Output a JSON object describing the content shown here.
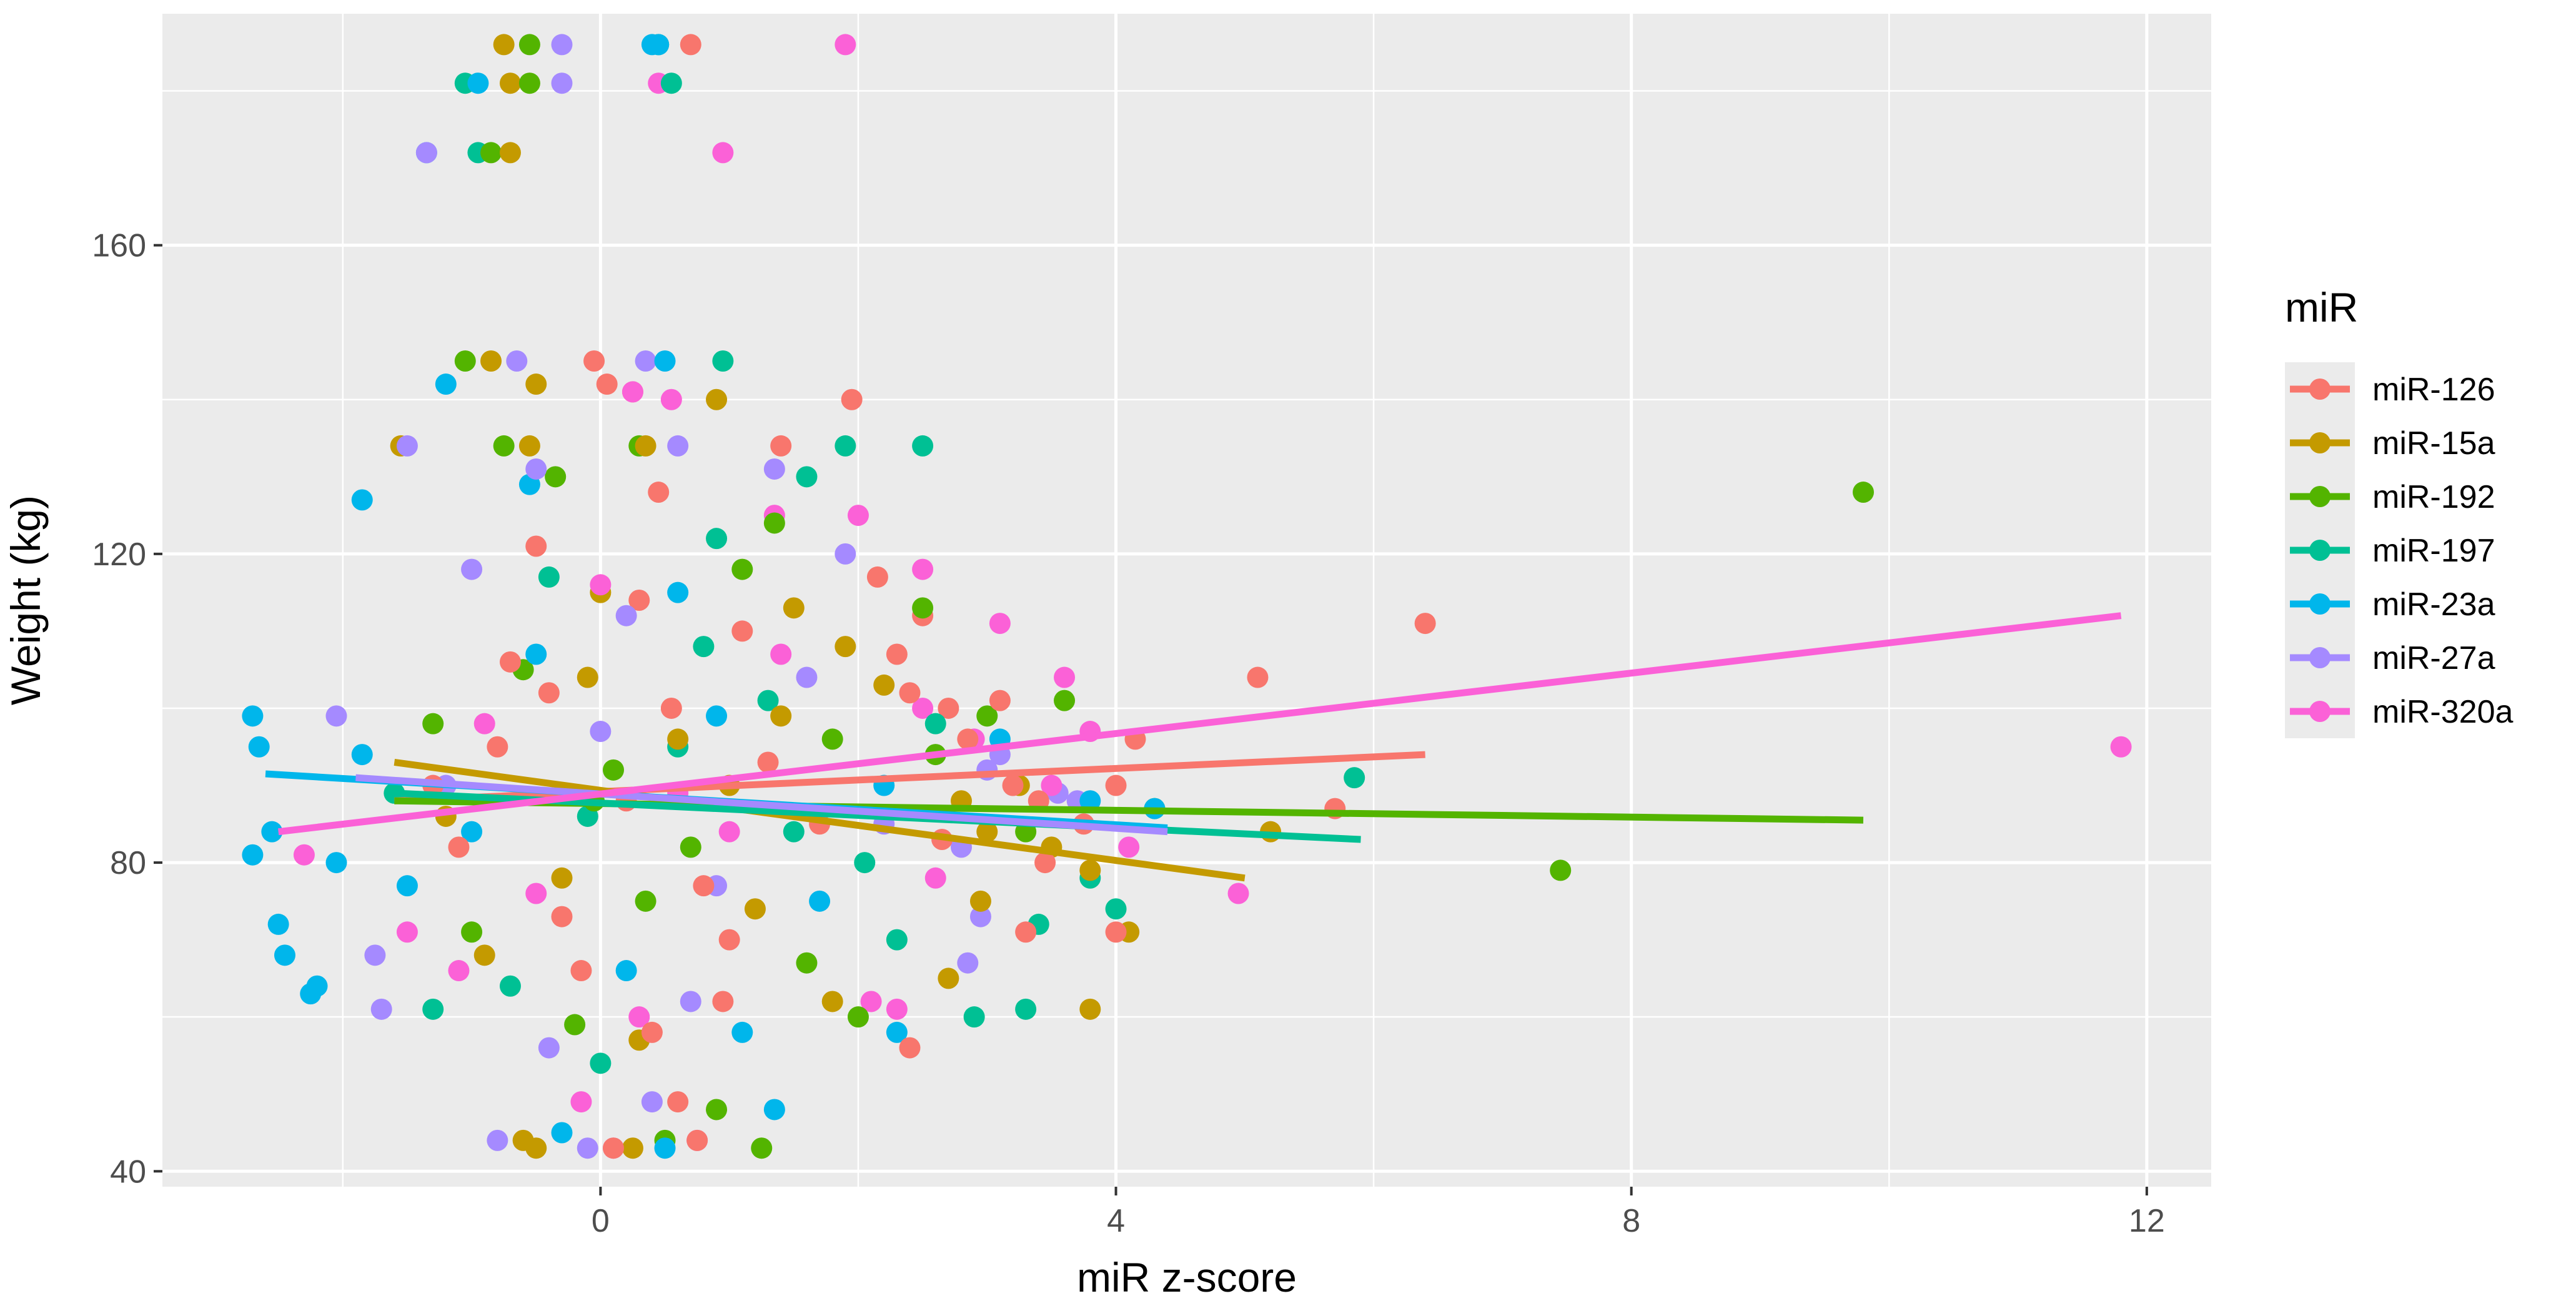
{
  "chart_data": {
    "type": "scatter",
    "xlabel": "miR z-score",
    "ylabel": "Weight (kg)",
    "xlim": [
      -3.4,
      12.5
    ],
    "ylim": [
      38,
      190
    ],
    "x_ticks": [
      0,
      4,
      8,
      12
    ],
    "x_tick_labels": [
      "0",
      "4",
      "8",
      "12"
    ],
    "y_ticks": [
      40,
      80,
      120,
      160
    ],
    "y_tick_labels": [
      "40",
      "80",
      "120",
      "160"
    ],
    "grid": true,
    "background": "#ebebeb",
    "legend": {
      "title": "miR",
      "position": "right",
      "entries": [
        "miR-126",
        "miR-15a",
        "miR-192",
        "miR-197",
        "miR-23a",
        "miR-27a",
        "miR-320a"
      ]
    },
    "series": [
      {
        "name": "miR-126",
        "color": "#F8766D",
        "fit": {
          "x": [
            -1.6,
            6.4
          ],
          "y": [
            88,
            94
          ]
        },
        "points": [
          [
            -0.05,
            145
          ],
          [
            0.05,
            142
          ],
          [
            0.25,
            141
          ],
          [
            1.95,
            140
          ],
          [
            0.7,
            186
          ],
          [
            1.4,
            134
          ],
          [
            0.45,
            128
          ],
          [
            -0.5,
            121
          ],
          [
            0.3,
            114
          ],
          [
            2.5,
            112
          ],
          [
            6.4,
            111
          ],
          [
            2.15,
            117
          ],
          [
            2.4,
            102
          ],
          [
            2.3,
            107
          ],
          [
            5.1,
            104
          ],
          [
            3.1,
            101
          ],
          [
            4.15,
            96
          ],
          [
            2.7,
            100
          ],
          [
            2.85,
            96
          ],
          [
            5.7,
            87
          ],
          [
            4.0,
            90
          ],
          [
            3.2,
            90
          ],
          [
            3.4,
            88
          ],
          [
            3.75,
            85
          ],
          [
            2.4,
            56
          ],
          [
            0.95,
            62
          ],
          [
            0.6,
            49
          ],
          [
            0.1,
            43
          ],
          [
            0.75,
            44
          ],
          [
            3.3,
            71
          ],
          [
            4.0,
            71
          ],
          [
            3.45,
            80
          ],
          [
            2.65,
            83
          ],
          [
            -0.8,
            95
          ],
          [
            -0.3,
            73
          ],
          [
            0.55,
            100
          ],
          [
            -1.1,
            82
          ],
          [
            1.0,
            70
          ],
          [
            -0.15,
            66
          ],
          [
            0.2,
            88
          ],
          [
            1.3,
            93
          ],
          [
            -0.7,
            106
          ],
          [
            0.8,
            77
          ],
          [
            1.7,
            85
          ],
          [
            -1.3,
            90
          ],
          [
            0.4,
            58
          ],
          [
            1.1,
            110
          ],
          [
            -0.4,
            102
          ]
        ]
      },
      {
        "name": "miR-15a",
        "color": "#C49A00",
        "fit": {
          "x": [
            -1.6,
            5.0
          ],
          "y": [
            93,
            78
          ]
        },
        "points": [
          [
            -0.75,
            186
          ],
          [
            -0.7,
            181
          ],
          [
            -0.85,
            145
          ],
          [
            -0.7,
            172
          ],
          [
            -1.55,
            134
          ],
          [
            -0.55,
            134
          ],
          [
            0.9,
            140
          ],
          [
            -0.5,
            142
          ],
          [
            0.35,
            134
          ],
          [
            1.5,
            113
          ],
          [
            1.9,
            108
          ],
          [
            2.2,
            103
          ],
          [
            3.25,
            90
          ],
          [
            3.5,
            82
          ],
          [
            3.0,
            84
          ],
          [
            2.8,
            88
          ],
          [
            3.8,
            79
          ],
          [
            4.1,
            71
          ],
          [
            3.8,
            61
          ],
          [
            5.2,
            84
          ],
          [
            2.95,
            75
          ],
          [
            2.7,
            65
          ],
          [
            -0.6,
            44
          ],
          [
            -0.5,
            43
          ],
          [
            0.25,
            43
          ],
          [
            1.8,
            62
          ],
          [
            1.2,
            74
          ],
          [
            -1.2,
            86
          ],
          [
            0.0,
            115
          ],
          [
            0.6,
            96
          ],
          [
            -0.3,
            78
          ],
          [
            1.0,
            90
          ],
          [
            -0.9,
            68
          ],
          [
            0.3,
            57
          ],
          [
            1.4,
            99
          ],
          [
            -0.1,
            104
          ]
        ]
      },
      {
        "name": "miR-192",
        "color": "#53B400",
        "fit": {
          "x": [
            -1.6,
            9.8
          ],
          "y": [
            88,
            85.5
          ]
        },
        "points": [
          [
            -0.55,
            186
          ],
          [
            -0.85,
            172
          ],
          [
            -0.55,
            181
          ],
          [
            -1.05,
            145
          ],
          [
            -0.75,
            134
          ],
          [
            0.3,
            134
          ],
          [
            -0.35,
            130
          ],
          [
            1.35,
            124
          ],
          [
            9.8,
            128
          ],
          [
            7.45,
            79
          ],
          [
            2.5,
            113
          ],
          [
            3.0,
            99
          ],
          [
            3.6,
            101
          ],
          [
            4.3,
            87
          ],
          [
            3.3,
            84
          ],
          [
            2.6,
            94
          ],
          [
            0.9,
            48
          ],
          [
            1.25,
            43
          ],
          [
            0.5,
            44
          ],
          [
            -0.2,
            59
          ],
          [
            -1.0,
            71
          ],
          [
            1.6,
            67
          ],
          [
            0.1,
            92
          ],
          [
            -0.6,
            105
          ],
          [
            0.7,
            82
          ],
          [
            -1.3,
            98
          ],
          [
            1.1,
            118
          ],
          [
            0.35,
            75
          ],
          [
            -0.05,
            88
          ],
          [
            2.0,
            60
          ],
          [
            1.8,
            96
          ]
        ]
      },
      {
        "name": "miR-197",
        "color": "#00C094",
        "fit": {
          "x": [
            -1.6,
            5.9
          ],
          "y": [
            89,
            83
          ]
        },
        "points": [
          [
            -0.95,
            172
          ],
          [
            -1.05,
            181
          ],
          [
            0.45,
            186
          ],
          [
            0.55,
            181
          ],
          [
            0.95,
            145
          ],
          [
            1.9,
            134
          ],
          [
            2.5,
            134
          ],
          [
            1.6,
            130
          ],
          [
            0.9,
            122
          ],
          [
            5.85,
            91
          ],
          [
            4.0,
            74
          ],
          [
            3.8,
            78
          ],
          [
            3.4,
            72
          ],
          [
            2.9,
            60
          ],
          [
            3.3,
            61
          ],
          [
            2.3,
            70
          ],
          [
            2.05,
            80
          ],
          [
            -0.1,
            86
          ],
          [
            0.8,
            108
          ],
          [
            -0.7,
            64
          ],
          [
            1.3,
            101
          ],
          [
            0.0,
            54
          ],
          [
            -1.3,
            61
          ],
          [
            0.6,
            95
          ],
          [
            -0.4,
            117
          ],
          [
            1.5,
            84
          ],
          [
            2.6,
            98
          ],
          [
            -1.6,
            89
          ]
        ]
      },
      {
        "name": "miR-23a",
        "color": "#00B6EB",
        "fit": {
          "x": [
            -2.6,
            4.4
          ],
          "y": [
            91.5,
            84.5
          ]
        },
        "points": [
          [
            -1.35,
            172
          ],
          [
            -0.95,
            181
          ],
          [
            0.4,
            186
          ],
          [
            0.45,
            186
          ],
          [
            -1.2,
            142
          ],
          [
            -0.55,
            129
          ],
          [
            0.5,
            145
          ],
          [
            -1.85,
            127
          ],
          [
            -2.7,
            99
          ],
          [
            -2.65,
            95
          ],
          [
            -2.55,
            84
          ],
          [
            -2.7,
            81
          ],
          [
            -2.5,
            72
          ],
          [
            -2.45,
            68
          ],
          [
            -2.2,
            64
          ],
          [
            -2.25,
            63
          ],
          [
            -2.05,
            80
          ],
          [
            -1.85,
            94
          ],
          [
            1.35,
            48
          ],
          [
            0.5,
            43
          ],
          [
            -0.3,
            45
          ],
          [
            2.3,
            58
          ],
          [
            3.1,
            96
          ],
          [
            3.8,
            88
          ],
          [
            4.3,
            87
          ],
          [
            1.7,
            75
          ],
          [
            0.2,
            66
          ],
          [
            -1.0,
            84
          ],
          [
            0.9,
            99
          ],
          [
            -0.5,
            107
          ],
          [
            1.1,
            58
          ],
          [
            -1.5,
            77
          ],
          [
            0.6,
            115
          ],
          [
            2.2,
            90
          ]
        ]
      },
      {
        "name": "miR-27a",
        "color": "#A58AFF",
        "fit": {
          "x": [
            -1.9,
            4.4
          ],
          "y": [
            91,
            84
          ]
        },
        "points": [
          [
            -0.3,
            186
          ],
          [
            -0.3,
            181
          ],
          [
            -1.35,
            172
          ],
          [
            -0.65,
            145
          ],
          [
            -1.5,
            134
          ],
          [
            0.35,
            145
          ],
          [
            0.6,
            134
          ],
          [
            -0.5,
            131
          ],
          [
            1.35,
            131
          ],
          [
            1.9,
            120
          ],
          [
            3.1,
            94
          ],
          [
            3.7,
            88
          ],
          [
            3.55,
            89
          ],
          [
            3.0,
            92
          ],
          [
            2.8,
            82
          ],
          [
            2.95,
            73
          ],
          [
            2.85,
            67
          ],
          [
            -0.8,
            44
          ],
          [
            -0.1,
            43
          ],
          [
            0.4,
            49
          ],
          [
            -2.05,
            99
          ],
          [
            -1.75,
            68
          ],
          [
            -1.7,
            61
          ],
          [
            -1.2,
            90
          ],
          [
            0.9,
            77
          ],
          [
            0.2,
            112
          ],
          [
            -0.4,
            56
          ],
          [
            1.6,
            104
          ],
          [
            -1.0,
            118
          ],
          [
            0.7,
            62
          ],
          [
            2.2,
            85
          ],
          [
            0.0,
            97
          ]
        ]
      },
      {
        "name": "miR-320a",
        "color": "#FB61D7",
        "fit": {
          "x": [
            -2.5,
            11.8
          ],
          "y": [
            84,
            112
          ]
        },
        "points": [
          [
            1.9,
            186
          ],
          [
            0.45,
            181
          ],
          [
            0.95,
            172
          ],
          [
            0.55,
            140
          ],
          [
            0.25,
            141
          ],
          [
            1.35,
            125
          ],
          [
            2.0,
            125
          ],
          [
            2.5,
            118
          ],
          [
            3.1,
            111
          ],
          [
            2.5,
            100
          ],
          [
            2.9,
            96
          ],
          [
            3.6,
            104
          ],
          [
            3.8,
            97
          ],
          [
            3.5,
            90
          ],
          [
            11.8,
            95
          ],
          [
            4.95,
            76
          ],
          [
            4.1,
            82
          ],
          [
            2.3,
            61
          ],
          [
            2.1,
            62
          ],
          [
            -0.15,
            49
          ],
          [
            0.1,
            43
          ],
          [
            0.75,
            44
          ],
          [
            -2.3,
            81
          ],
          [
            -1.1,
            66
          ],
          [
            0.6,
            89
          ],
          [
            -0.5,
            76
          ],
          [
            1.4,
            107
          ],
          [
            0.3,
            60
          ],
          [
            -0.9,
            98
          ],
          [
            1.0,
            84
          ],
          [
            2.6,
            78
          ],
          [
            -1.5,
            71
          ],
          [
            0.0,
            116
          ]
        ]
      }
    ]
  }
}
